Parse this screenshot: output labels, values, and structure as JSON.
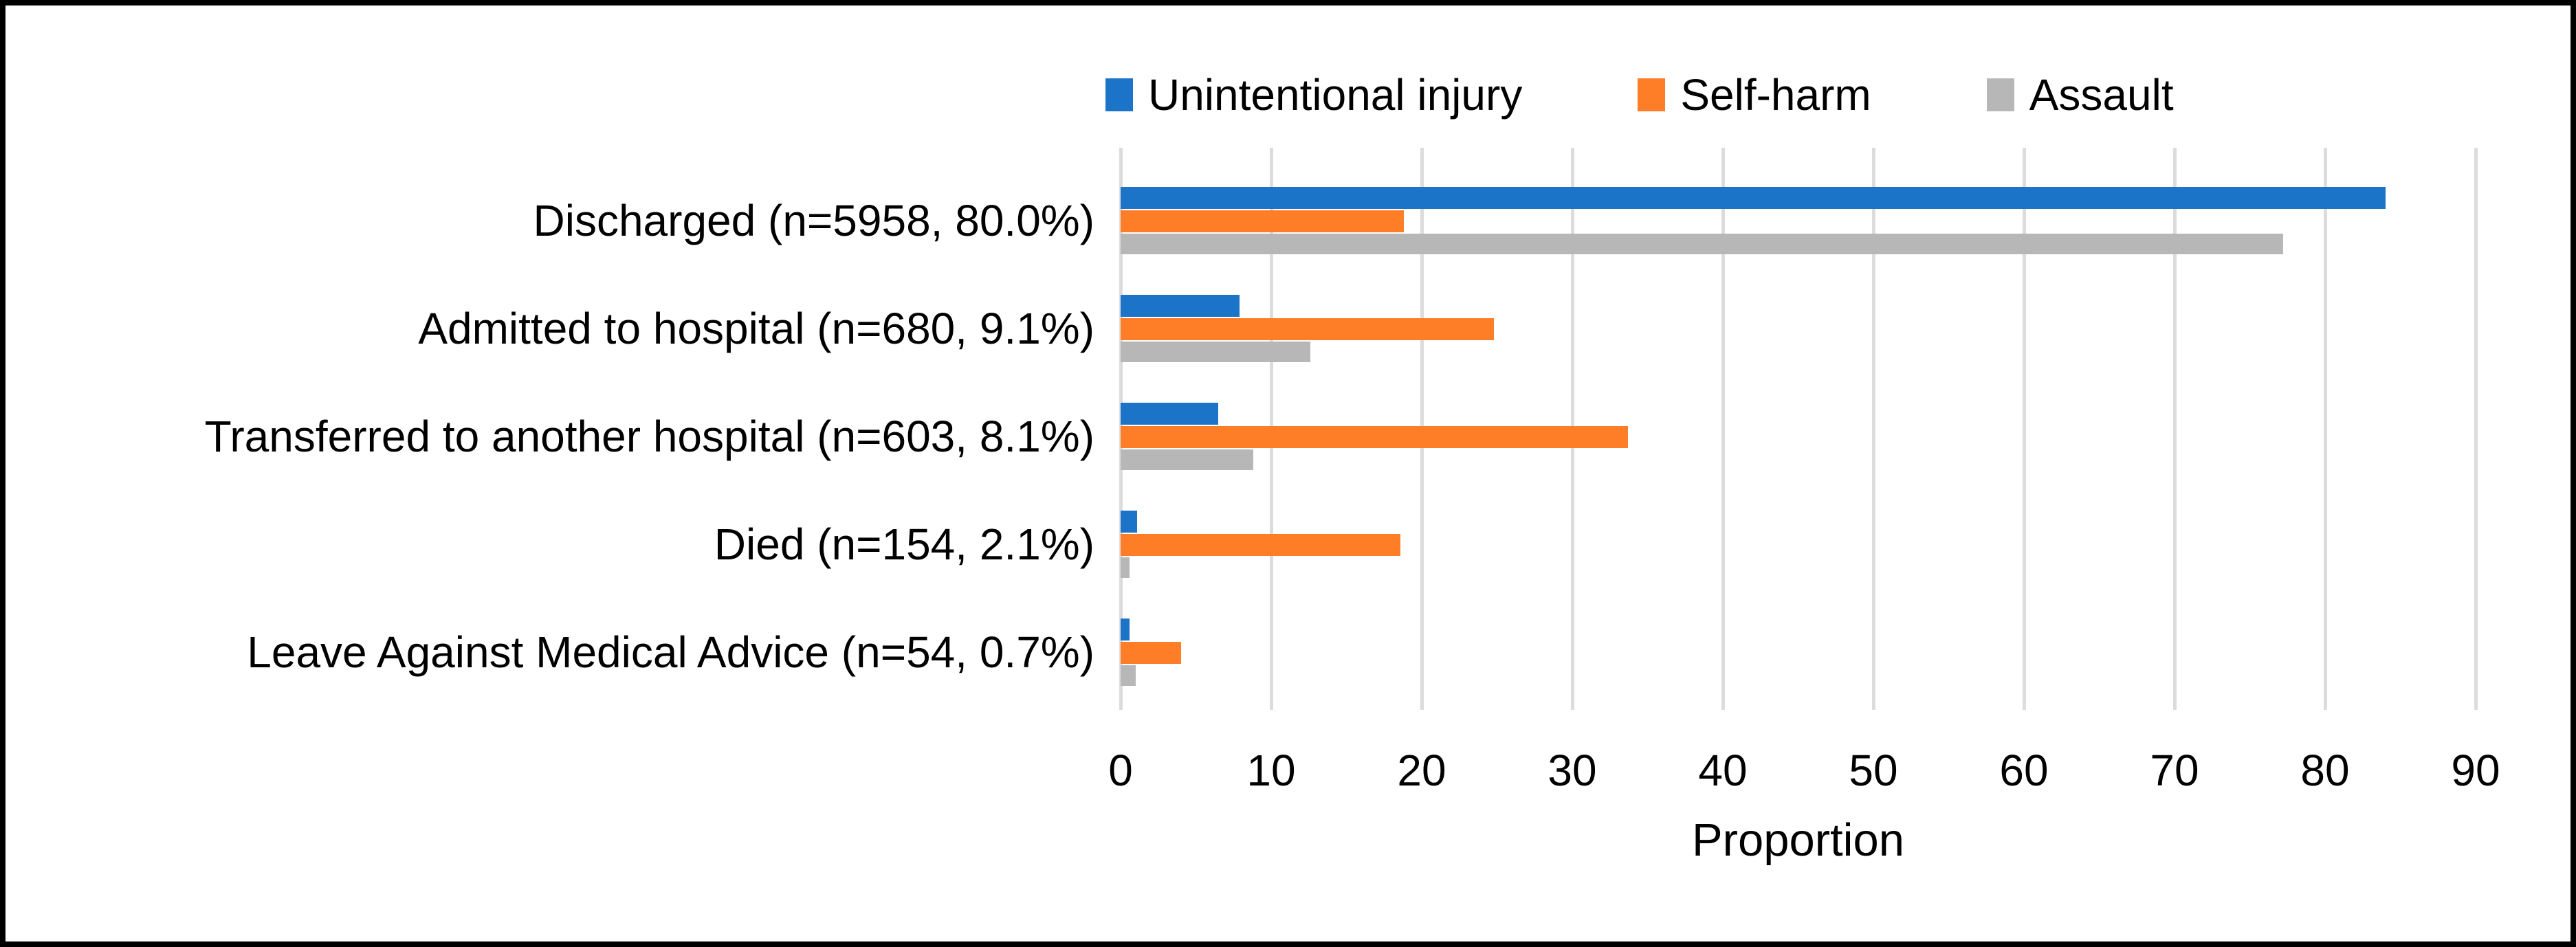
{
  "chart_data": {
    "type": "bar",
    "orientation": "horizontal",
    "title": "",
    "xlabel": "Proportion",
    "ylabel": "",
    "xlim": [
      0,
      90
    ],
    "xticks": [
      0,
      10,
      20,
      30,
      40,
      50,
      60,
      70,
      80,
      90
    ],
    "grid": "vertical",
    "legend_position": "top-center",
    "categories": [
      "Discharged (n=5958, 80.0%)",
      "Admitted to hospital (n=680, 9.1%)",
      "Transferred to another hospital (n=603, 8.1%)",
      "Died (n=154, 2.1%)",
      "Leave Against Medical Advice (n=54, 0.7%)"
    ],
    "series": [
      {
        "name": "Unintentional injury",
        "color": "#1C74C9",
        "values": [
          84.0,
          7.9,
          6.5,
          1.1,
          0.6
        ]
      },
      {
        "name": "Self-harm",
        "color": "#FD7E27",
        "values": [
          18.8,
          24.8,
          33.7,
          18.6,
          4.0
        ]
      },
      {
        "name": "Assault",
        "color": "#B7B7B7",
        "values": [
          77.2,
          12.6,
          8.8,
          0.6,
          1.0
        ]
      }
    ],
    "colors": {
      "gridline": "#DCDCDC",
      "text": "#000000",
      "frame_border": "#000000",
      "background": "#FFFFFF"
    }
  }
}
